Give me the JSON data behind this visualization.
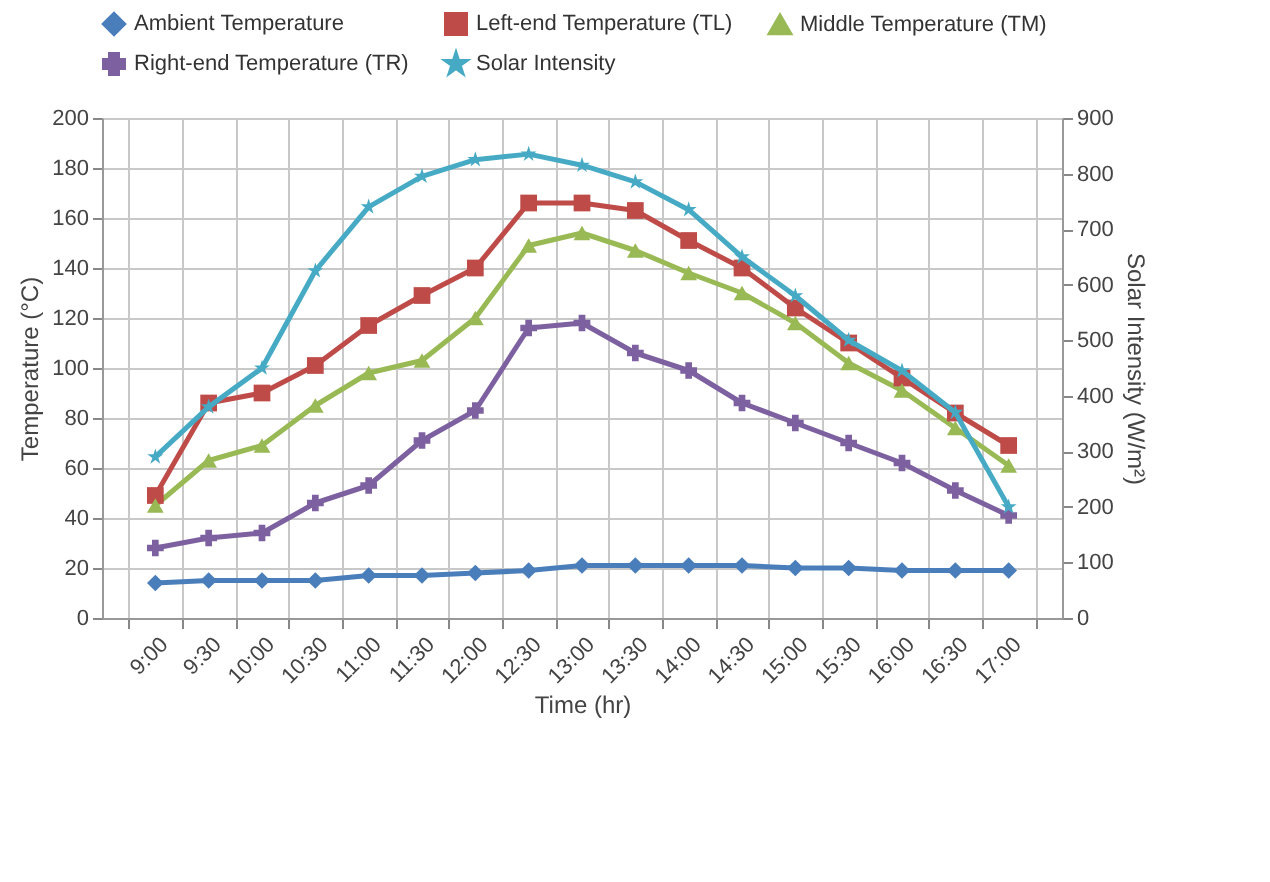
{
  "chart_data": {
    "type": "line",
    "xlabel": "Time (hr)",
    "ylabel": "Temperature (°C)",
    "y2label": "Solar Intensity (W/m²)",
    "categories": [
      "9:00",
      "9:30",
      "10:00",
      "10:30",
      "11:00",
      "11:30",
      "12:00",
      "12:30",
      "13:00",
      "13:30",
      "14:00",
      "14:30",
      "15:00",
      "15:30",
      "16:00",
      "16:30",
      "17:00"
    ],
    "series": [
      {
        "name": "Ambient Temperature",
        "color": "#4a7ebb",
        "marker": "diamond",
        "values": [
          14,
          15,
          15,
          15,
          17,
          17,
          18,
          19,
          21,
          21,
          21,
          21,
          20,
          20,
          19,
          19,
          19
        ]
      },
      {
        "name": "Left-end Temperature (TL)",
        "color": "#be4b48",
        "marker": "square",
        "values": [
          49,
          86,
          90,
          101,
          117,
          129,
          140,
          166,
          166,
          163,
          151,
          140,
          124,
          110,
          96,
          82,
          69
        ]
      },
      {
        "name": "Middle Temperature (TM)",
        "color": "#98b954",
        "marker": "triangle",
        "values": [
          45,
          63,
          69,
          85,
          98,
          103,
          120,
          149,
          154,
          147,
          138,
          130,
          118,
          102,
          91,
          76,
          61
        ]
      },
      {
        "name": "Right-end Temperature (TR)",
        "color": "#7d60a0",
        "marker": "cross",
        "values": [
          28,
          32,
          34,
          46,
          53,
          71,
          83,
          116,
          118,
          106,
          99,
          86,
          78,
          70,
          62,
          51,
          41
        ]
      },
      {
        "name": "Solar Intensity",
        "color": "#46aac5",
        "marker": "star",
        "axis": "y2",
        "values": [
          290,
          380,
          450,
          625,
          740,
          795,
          825,
          835,
          815,
          785,
          735,
          650,
          580,
          500,
          445,
          370,
          200
        ]
      }
    ],
    "ylim": [
      0,
      200
    ],
    "yticks": [
      0,
      20,
      40,
      60,
      80,
      100,
      120,
      140,
      160,
      180,
      200
    ],
    "y2lim": [
      0,
      900
    ],
    "y2ticks": [
      0,
      100,
      200,
      300,
      400,
      500,
      600,
      700,
      800,
      900
    ],
    "grid": true,
    "legend": "top"
  }
}
